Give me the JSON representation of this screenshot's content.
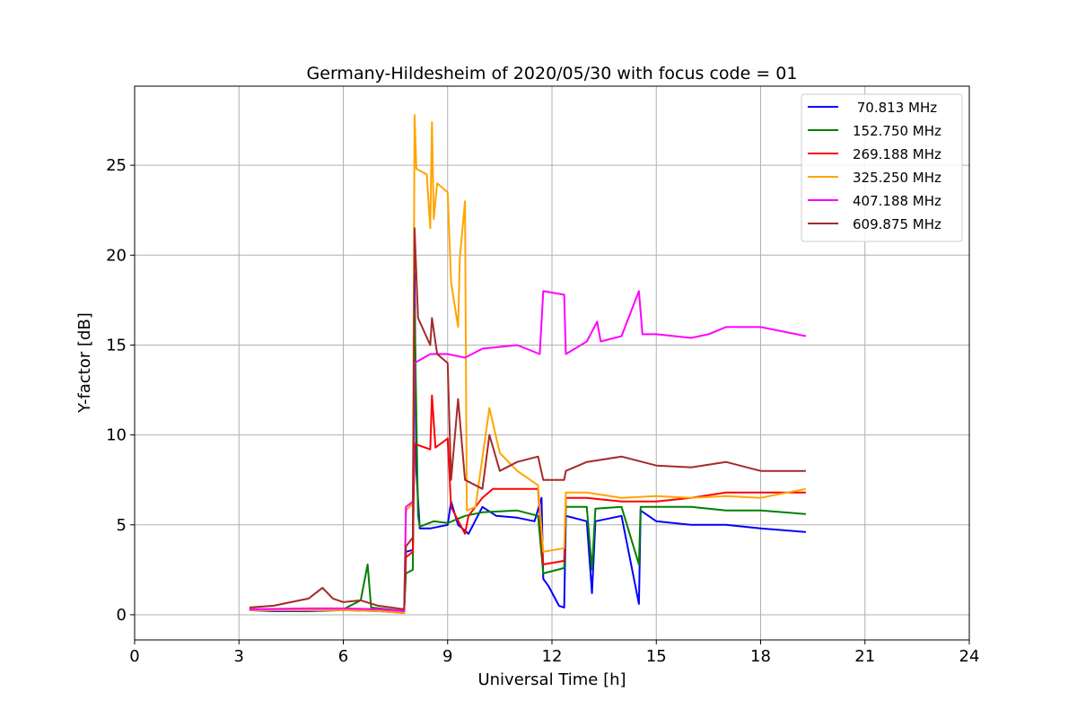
{
  "chart_data": {
    "type": "line",
    "title": "Germany-Hildesheim of 2020/05/30 with focus code = 01",
    "xlabel": "Universal Time [h]",
    "ylabel": "Y-factor [dB]",
    "xlim": [
      0,
      24
    ],
    "ylim": [
      -1.4,
      29.4
    ],
    "xticks": [
      0,
      3,
      6,
      9,
      12,
      15,
      18,
      21,
      24
    ],
    "yticks": [
      0,
      5,
      10,
      15,
      20,
      25
    ],
    "grid": true,
    "legend_position": "top-right",
    "series": [
      {
        "name": " 70.813 MHz",
        "color": "#0000ff",
        "points": [
          [
            3.3,
            0.25
          ],
          [
            4,
            0.2
          ],
          [
            5,
            0.2
          ],
          [
            6,
            0.25
          ],
          [
            7,
            0.2
          ],
          [
            7.75,
            0.1
          ],
          [
            7.8,
            3.5
          ],
          [
            8.0,
            3.6
          ],
          [
            8.05,
            19.0
          ],
          [
            8.1,
            8.0
          ],
          [
            8.2,
            4.8
          ],
          [
            8.5,
            4.8
          ],
          [
            9.0,
            5.0
          ],
          [
            9.1,
            6.3
          ],
          [
            9.3,
            5.0
          ],
          [
            9.6,
            4.5
          ],
          [
            10.0,
            6.0
          ],
          [
            10.4,
            5.5
          ],
          [
            11.0,
            5.4
          ],
          [
            11.5,
            5.2
          ],
          [
            11.7,
            6.5
          ],
          [
            11.75,
            2.0
          ],
          [
            11.9,
            1.6
          ],
          [
            12.2,
            0.5
          ],
          [
            12.35,
            0.4
          ],
          [
            12.4,
            5.5
          ],
          [
            13.0,
            5.2
          ],
          [
            13.15,
            1.2
          ],
          [
            13.25,
            5.2
          ],
          [
            14.0,
            5.5
          ],
          [
            14.5,
            0.6
          ],
          [
            14.55,
            5.8
          ],
          [
            15.0,
            5.2
          ],
          [
            16.0,
            5.0
          ],
          [
            17.0,
            5.0
          ],
          [
            18.0,
            4.8
          ],
          [
            19.3,
            4.6
          ]
        ]
      },
      {
        "name": "152.750 MHz",
        "color": "#008000",
        "points": [
          [
            3.3,
            0.3
          ],
          [
            5,
            0.3
          ],
          [
            6,
            0.3
          ],
          [
            6.5,
            0.8
          ],
          [
            6.7,
            2.8
          ],
          [
            6.8,
            0.4
          ],
          [
            7.75,
            0.2
          ],
          [
            7.8,
            2.3
          ],
          [
            8.0,
            2.5
          ],
          [
            8.05,
            17.0
          ],
          [
            8.15,
            5.5
          ],
          [
            8.2,
            4.9
          ],
          [
            8.6,
            5.2
          ],
          [
            9.0,
            5.1
          ],
          [
            9.5,
            5.5
          ],
          [
            10.0,
            5.7
          ],
          [
            11.0,
            5.8
          ],
          [
            11.6,
            5.5
          ],
          [
            11.75,
            2.3
          ],
          [
            12.35,
            2.6
          ],
          [
            12.4,
            6.0
          ],
          [
            13.0,
            6.0
          ],
          [
            13.15,
            2.5
          ],
          [
            13.25,
            5.9
          ],
          [
            14.0,
            6.0
          ],
          [
            14.5,
            2.8
          ],
          [
            14.55,
            6.0
          ],
          [
            15.0,
            6.0
          ],
          [
            16.0,
            6.0
          ],
          [
            17.0,
            5.8
          ],
          [
            18.0,
            5.8
          ],
          [
            19.3,
            5.6
          ]
        ]
      },
      {
        "name": "269.188 MHz",
        "color": "#ff0000",
        "points": [
          [
            3.3,
            0.3
          ],
          [
            5,
            0.3
          ],
          [
            6,
            0.3
          ],
          [
            7,
            0.3
          ],
          [
            7.75,
            0.2
          ],
          [
            7.8,
            3.2
          ],
          [
            8.0,
            3.5
          ],
          [
            8.05,
            9.5
          ],
          [
            8.5,
            9.2
          ],
          [
            8.55,
            12.2
          ],
          [
            8.65,
            9.3
          ],
          [
            9.0,
            9.8
          ],
          [
            9.1,
            6.0
          ],
          [
            9.5,
            4.5
          ],
          [
            9.6,
            5.5
          ],
          [
            10.0,
            6.5
          ],
          [
            10.3,
            7.0
          ],
          [
            11.0,
            7.0
          ],
          [
            11.6,
            7.0
          ],
          [
            11.75,
            2.8
          ],
          [
            12.35,
            3.0
          ],
          [
            12.4,
            6.5
          ],
          [
            13.0,
            6.5
          ],
          [
            14.0,
            6.3
          ],
          [
            15.0,
            6.3
          ],
          [
            16.0,
            6.5
          ],
          [
            17.0,
            6.8
          ],
          [
            18.0,
            6.8
          ],
          [
            19.3,
            6.8
          ]
        ]
      },
      {
        "name": "325.250 MHz",
        "color": "#ffa500",
        "points": [
          [
            3.3,
            0.25
          ],
          [
            5,
            0.25
          ],
          [
            6,
            0.25
          ],
          [
            7,
            0.2
          ],
          [
            7.75,
            0.1
          ],
          [
            7.8,
            5.8
          ],
          [
            8.0,
            6.2
          ],
          [
            8.05,
            27.8
          ],
          [
            8.1,
            24.8
          ],
          [
            8.4,
            24.5
          ],
          [
            8.5,
            21.5
          ],
          [
            8.55,
            27.4
          ],
          [
            8.6,
            22.0
          ],
          [
            8.7,
            24.0
          ],
          [
            9.0,
            23.5
          ],
          [
            9.1,
            18.5
          ],
          [
            9.3,
            16.0
          ],
          [
            9.35,
            19.8
          ],
          [
            9.5,
            23.0
          ],
          [
            9.55,
            5.8
          ],
          [
            9.8,
            6.0
          ],
          [
            10.2,
            11.5
          ],
          [
            10.5,
            9.0
          ],
          [
            11.0,
            8.0
          ],
          [
            11.6,
            7.2
          ],
          [
            11.75,
            3.5
          ],
          [
            12.35,
            3.7
          ],
          [
            12.4,
            6.8
          ],
          [
            13.0,
            6.8
          ],
          [
            14.0,
            6.5
          ],
          [
            15.0,
            6.6
          ],
          [
            16.0,
            6.5
          ],
          [
            17.0,
            6.6
          ],
          [
            18.0,
            6.5
          ],
          [
            19.3,
            7.0
          ]
        ]
      },
      {
        "name": "407.188 MHz",
        "color": "#ff00ff",
        "points": [
          [
            3.3,
            0.3
          ],
          [
            5,
            0.35
          ],
          [
            6,
            0.35
          ],
          [
            7,
            0.3
          ],
          [
            7.75,
            0.2
          ],
          [
            7.8,
            6.0
          ],
          [
            8.0,
            6.3
          ],
          [
            8.05,
            14.0
          ],
          [
            8.5,
            14.5
          ],
          [
            9.0,
            14.5
          ],
          [
            9.5,
            14.3
          ],
          [
            10.0,
            14.8
          ],
          [
            11.0,
            15.0
          ],
          [
            11.65,
            14.5
          ],
          [
            11.75,
            18.0
          ],
          [
            12.35,
            17.8
          ],
          [
            12.4,
            14.5
          ],
          [
            13.0,
            15.2
          ],
          [
            13.3,
            16.3
          ],
          [
            13.4,
            15.2
          ],
          [
            14.0,
            15.5
          ],
          [
            14.5,
            18.0
          ],
          [
            14.6,
            15.6
          ],
          [
            15.0,
            15.6
          ],
          [
            16.0,
            15.4
          ],
          [
            16.5,
            15.6
          ],
          [
            17.0,
            16.0
          ],
          [
            18.0,
            16.0
          ],
          [
            19.3,
            15.5
          ]
        ]
      },
      {
        "name": "609.875 MHz",
        "color": "#a52a2a",
        "points": [
          [
            3.3,
            0.4
          ],
          [
            4,
            0.5
          ],
          [
            4.5,
            0.7
          ],
          [
            5,
            0.9
          ],
          [
            5.4,
            1.5
          ],
          [
            5.7,
            0.9
          ],
          [
            6.0,
            0.7
          ],
          [
            6.5,
            0.8
          ],
          [
            7.0,
            0.5
          ],
          [
            7.75,
            0.3
          ],
          [
            7.8,
            3.8
          ],
          [
            8.0,
            4.3
          ],
          [
            8.05,
            21.5
          ],
          [
            8.15,
            16.5
          ],
          [
            8.5,
            15.0
          ],
          [
            8.55,
            16.5
          ],
          [
            8.7,
            14.5
          ],
          [
            9.0,
            14.0
          ],
          [
            9.1,
            7.5
          ],
          [
            9.3,
            12.0
          ],
          [
            9.5,
            7.5
          ],
          [
            10.0,
            7.0
          ],
          [
            10.2,
            10.0
          ],
          [
            10.5,
            8.0
          ],
          [
            11.0,
            8.5
          ],
          [
            11.6,
            8.8
          ],
          [
            11.75,
            7.5
          ],
          [
            12.35,
            7.5
          ],
          [
            12.4,
            8.0
          ],
          [
            13.0,
            8.5
          ],
          [
            14.0,
            8.8
          ],
          [
            15.0,
            8.3
          ],
          [
            16.0,
            8.2
          ],
          [
            17.0,
            8.5
          ],
          [
            18.0,
            8.0
          ],
          [
            19.3,
            8.0
          ]
        ]
      }
    ]
  }
}
